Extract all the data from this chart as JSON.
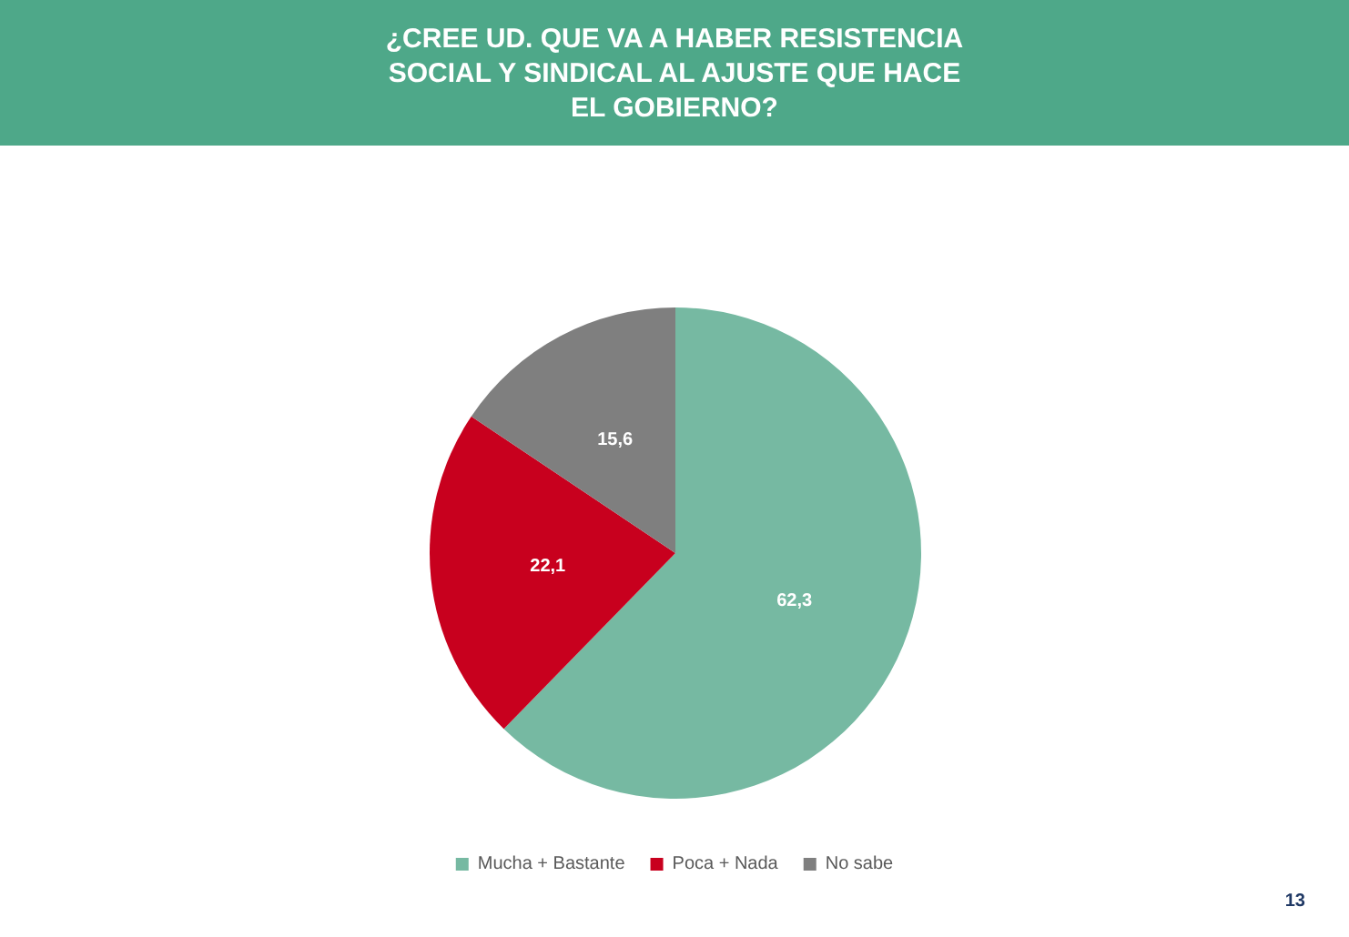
{
  "chart_data": {
    "type": "pie",
    "title": "¿CREE UD. QUE VA A HABER RESISTENCIA\nSOCIAL Y SINDICAL AL AJUSTE QUE HACE\nEL GOBIERNO?",
    "categories": [
      "Mucha + Bastante",
      "Poca + Nada",
      "No sabe"
    ],
    "values": [
      62.3,
      22.1,
      15.6
    ],
    "value_labels": [
      "62,3",
      "22,1",
      "15,6"
    ],
    "colors": [
      "#76b9a2",
      "#c8001e",
      "#7f7f7f"
    ],
    "legend": "bottom",
    "annotations": [
      "13"
    ]
  }
}
